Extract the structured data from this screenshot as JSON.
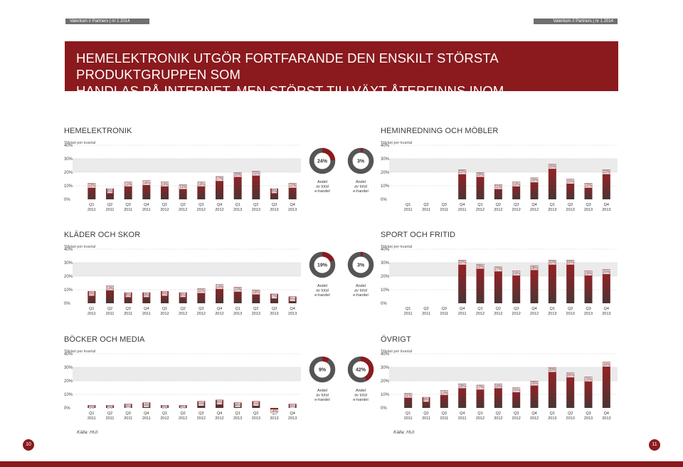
{
  "header": {
    "left_label": "Valentum // Partners | nr 1 2014",
    "right_label": "Valentum // Partners | nr 1 2014",
    "title_line1": "HEMELEKTRONIK UTGÖR FORTFARANDE DEN ENSKILT STÖRSTA PRODUKTGRUPPEN SOM",
    "title_line2": "HANDLAS PÅ INTERNET, MEN STÖRST TILLVÄXT ÅTERFINNS INOM HEMINREDNING"
  },
  "footer": {
    "source_left": "Källa: HUI",
    "source_right": "Källa: HUI",
    "page_left": "10",
    "page_right": "11"
  },
  "colors": {
    "accent": "#8a1a1e",
    "bar_top": "#9e1f24",
    "bar_bottom": "#4a3433",
    "donut_grey": "#555555",
    "band": "#ebebeb"
  },
  "chart_data": [
    {
      "type": "bar",
      "title": "HEMELEKTRONIK",
      "subtitle": "Tillväxt per kvartal",
      "categories": [
        "Q1 2011",
        "Q2 2011",
        "Q3 2011",
        "Q4 2011",
        "Q1 2012",
        "Q2 2012",
        "Q3 2012",
        "Q4 2012",
        "Q1 2013",
        "Q2 2013",
        "Q3 2013",
        "Q4 2013"
      ],
      "values": [
        12,
        8,
        13,
        14,
        13,
        11,
        13,
        17,
        20,
        21,
        8,
        12
      ],
      "labels": [
        "12%",
        "8%",
        "13%",
        "14%",
        "13%",
        "11%",
        "13%",
        "17%",
        "20%",
        "21%",
        "8%",
        "12%"
      ],
      "yticks": [
        "0%",
        "10%",
        "20%",
        "30%",
        "40%"
      ],
      "ylim": [
        0,
        40
      ],
      "donut": {
        "value": 24,
        "label": "24%",
        "caption": [
          "Andel",
          "av total",
          "e-handel"
        ]
      }
    },
    {
      "type": "bar",
      "title": "HEMINREDNING OCH MÖBLER",
      "subtitle": "Tillväxt per kvartal",
      "categories": [
        "Q1 2011",
        "Q2 2011",
        "Q3 2011",
        "Q4 2011",
        "Q1 2012",
        "Q2 2012",
        "Q3 2012",
        "Q4 2012",
        "Q1 2013",
        "Q2 2013",
        "Q3 2013",
        "Q4 2013"
      ],
      "values": [
        null,
        null,
        null,
        22,
        20,
        11,
        13,
        16,
        26,
        15,
        12,
        22
      ],
      "labels": [
        "",
        "",
        "",
        "22%",
        "20%",
        "11%",
        "13%",
        "16%",
        "26%",
        "15%",
        "12%",
        "22%"
      ],
      "yticks": [
        "0%",
        "10%",
        "20%",
        "30%",
        "40%"
      ],
      "ylim": [
        0,
        40
      ],
      "donut": {
        "value": 3,
        "label": "3%",
        "caption": [
          "Andel",
          "av total",
          "e-handel"
        ]
      }
    },
    {
      "type": "bar",
      "title": "KLÄDER OCH SKOR",
      "subtitle": "Tillväxt per kvartal",
      "categories": [
        "Q1 2011",
        "Q2 2011",
        "Q3 2011",
        "Q4 2011",
        "Q1 2012",
        "Q2 2012",
        "Q3 2012",
        "Q4 2012",
        "Q1 2013",
        "Q2 2013",
        "Q3 2013",
        "Q4 2013"
      ],
      "values": [
        9,
        13,
        8,
        8,
        9,
        8,
        11,
        14,
        12,
        10,
        7,
        5
      ],
      "labels": [
        "9%",
        "13%",
        "8%",
        "8%",
        "9%",
        "8%",
        "11%",
        "14%",
        "12%",
        "10%",
        "7%",
        "5%"
      ],
      "yticks": [
        "0%",
        "10%",
        "20%",
        "30%",
        "40%"
      ],
      "ylim": [
        0,
        40
      ],
      "donut": {
        "value": 19,
        "label": "19%",
        "caption": [
          "Andel",
          "av total",
          "e-handel"
        ]
      }
    },
    {
      "type": "bar",
      "title": "SPORT OCH FRITID",
      "subtitle": "Tillväxt per kvartal",
      "categories": [
        "Q1 2011",
        "Q2 2011",
        "Q3 2011",
        "Q4 2011",
        "Q1 2012",
        "Q2 2012",
        "Q3 2012",
        "Q4 2012",
        "Q1 2013",
        "Q2 2013",
        "Q3 2013",
        "Q4 2013"
      ],
      "values": [
        null,
        null,
        null,
        32,
        29,
        27,
        24,
        28,
        32,
        32,
        24,
        25
      ],
      "labels": [
        "",
        "",
        "",
        "32%",
        "29%",
        "27%",
        "24%",
        "28%",
        "32%",
        "32%",
        "24%",
        "25%"
      ],
      "yticks": [
        "0%",
        "10%",
        "20%",
        "30%",
        "40%"
      ],
      "ylim": [
        0,
        40
      ],
      "donut": {
        "value": 3,
        "label": "3%",
        "caption": [
          "Andel",
          "av total",
          "e-handel"
        ]
      }
    },
    {
      "type": "bar",
      "title": "BÖCKER OCH MEDIA",
      "subtitle": "Tillväxt per kvartal",
      "categories": [
        "Q1 2011",
        "Q2 2011",
        "Q3 2011",
        "Q4 2011",
        "Q1 2012",
        "Q2 2012",
        "Q3 2012",
        "Q4 2012",
        "Q1 2013",
        "Q2 2013",
        "Q3 2013",
        "Q4 2013"
      ],
      "values": [
        2,
        2,
        3,
        4,
        2,
        2,
        5,
        6,
        4,
        5,
        -4,
        3
      ],
      "labels": [
        "2%",
        "2%",
        "3%",
        "4%",
        "2%",
        "2%",
        "5%",
        "6%",
        "4%",
        "5%",
        "-4%",
        "3%"
      ],
      "yticks": [
        "0%",
        "10%",
        "20%",
        "30%",
        "40%"
      ],
      "ylim": [
        0,
        40
      ],
      "donut": {
        "value": 9,
        "label": "9%",
        "caption": [
          "Andel",
          "av total",
          "e-handel"
        ]
      }
    },
    {
      "type": "bar",
      "title": "ÖVRIGT",
      "subtitle": "Tillväxt per kvartal",
      "categories": [
        "Q1 2011",
        "Q2 2011",
        "Q3 2011",
        "Q4 2011",
        "Q1 2012",
        "Q2 2012",
        "Q3 2012",
        "Q4 2012",
        "Q1 2013",
        "Q2 2013",
        "Q3 2013",
        "Q4 2013"
      ],
      "values": [
        11,
        8,
        13,
        18,
        17,
        18,
        15,
        20,
        30,
        26,
        23,
        34
      ],
      "labels": [
        "11%",
        "8%",
        "13%",
        "18%",
        "17%",
        "18%",
        "15%",
        "20%",
        "30%",
        "26%",
        "23%",
        "34%"
      ],
      "yticks": [
        "0%",
        "10%",
        "20%",
        "30%",
        "40%"
      ],
      "ylim": [
        0,
        40
      ],
      "donut": {
        "value": 42,
        "label": "42%",
        "caption": [
          "Andel",
          "av total",
          "e-handel"
        ]
      }
    }
  ]
}
